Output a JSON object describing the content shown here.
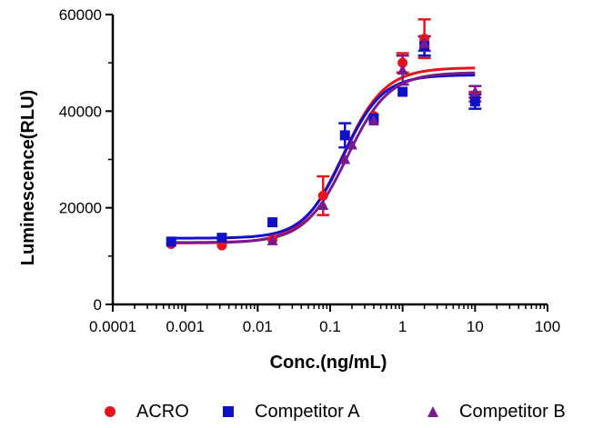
{
  "chart_data": {
    "type": "scatter",
    "title": "",
    "xlabel": "Conc.(ng/mL)",
    "ylabel": "Luminescence(RLU)",
    "x_scale": "log",
    "xlim": [
      0.0001,
      100
    ],
    "ylim": [
      0,
      60000
    ],
    "x_ticks": [
      "0.0001",
      "0.001",
      "0.01",
      "0.1",
      "1",
      "10",
      "100"
    ],
    "y_ticks": [
      "0",
      "20000",
      "40000",
      "60000"
    ],
    "legend_position": "bottom",
    "series": [
      {
        "name": "ACRO",
        "color": "#e8141c",
        "marker": "circle",
        "x": [
          0.00064,
          0.0032,
          0.016,
          0.08,
          0.4,
          1,
          2,
          10
        ],
        "y": [
          12500,
          12200,
          13400,
          22500,
          39000,
          50000,
          55000,
          43000
        ],
        "err": [
          0,
          0,
          0,
          4000,
          0,
          2000,
          4000,
          1000
        ],
        "fit": {
          "bottom": 12700,
          "top": 49000,
          "ec50": 0.15,
          "hill": 1.5
        }
      },
      {
        "name": "Competitor A",
        "color": "#1010c8",
        "marker": "square",
        "x": [
          0.00064,
          0.0032,
          0.016,
          0.16,
          0.4,
          1,
          2,
          10
        ],
        "y": [
          13000,
          13800,
          17000,
          35000,
          38500,
          44000,
          53500,
          42000
        ],
        "err": [
          0,
          0,
          0,
          2500,
          0,
          0,
          2000,
          1500
        ],
        "fit": {
          "bottom": 13700,
          "top": 47500,
          "ec50": 0.15,
          "hill": 1.6
        }
      },
      {
        "name": "Competitor B",
        "color": "#7a1a8f",
        "marker": "triangle",
        "x": [
          0.016,
          0.08,
          0.16,
          0.2,
          0.4,
          1,
          2,
          10
        ],
        "y": [
          13200,
          20500,
          30000,
          33000,
          38000,
          48500,
          54000,
          44000
        ],
        "err": [
          0,
          0,
          0,
          0,
          0,
          3000,
          1500,
          1200
        ],
        "fit": {
          "bottom": 12800,
          "top": 48000,
          "ec50": 0.17,
          "hill": 1.5
        }
      }
    ]
  }
}
